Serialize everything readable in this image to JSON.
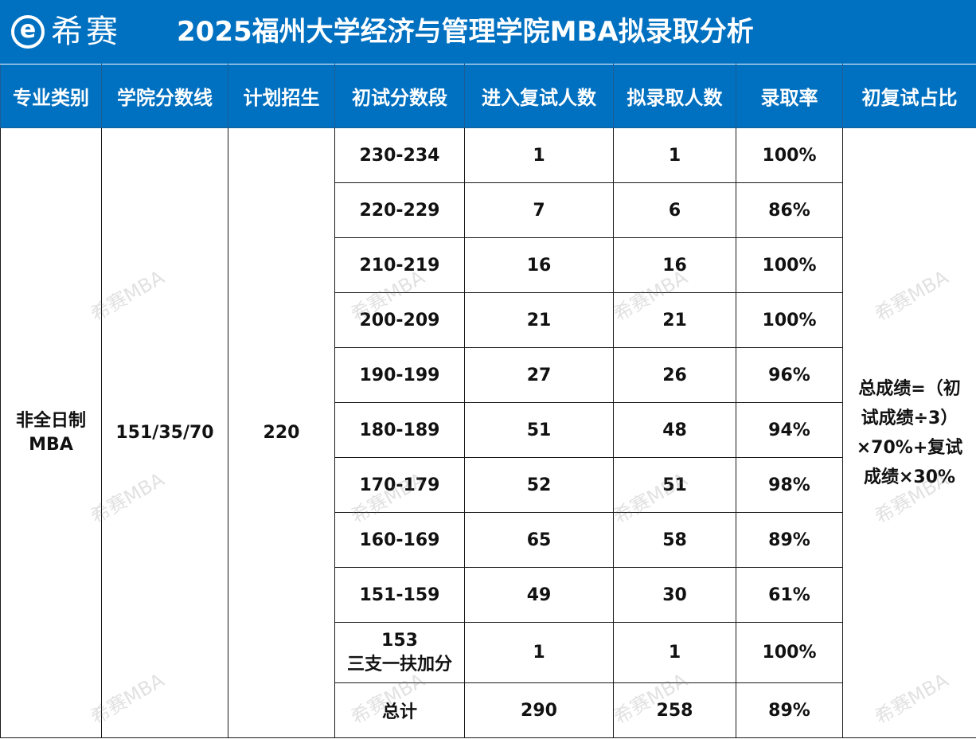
{
  "logo": {
    "icon": "e-circle-logo-icon",
    "text": "希赛"
  },
  "title": "2025福州大学经济与管理学院MBA拟录取分析",
  "columns": [
    "专业类别",
    "学院分数线",
    "计划招生",
    "初试分数段",
    "进入复试人数",
    "拟录取人数",
    "录取率",
    "初复试占比"
  ],
  "program": {
    "line1": "非全日制",
    "line2": "MBA"
  },
  "school_line": "151/35/70",
  "plan": "220",
  "ranges": [
    {
      "range": "230-234",
      "enter": "1",
      "admit": "1",
      "rate": "100%"
    },
    {
      "range": "220-229",
      "enter": "7",
      "admit": "6",
      "rate": "86%"
    },
    {
      "range": "210-219",
      "enter": "16",
      "admit": "16",
      "rate": "100%"
    },
    {
      "range": "200-209",
      "enter": "21",
      "admit": "21",
      "rate": "100%"
    },
    {
      "range": "190-199",
      "enter": "27",
      "admit": "26",
      "rate": "96%"
    },
    {
      "range": "180-189",
      "enter": "51",
      "admit": "48",
      "rate": "94%"
    },
    {
      "range": "170-179",
      "enter": "52",
      "admit": "51",
      "rate": "98%"
    },
    {
      "range": "160-169",
      "enter": "65",
      "admit": "58",
      "rate": "89%"
    },
    {
      "range": "151-159",
      "enter": "49",
      "admit": "30",
      "rate": "61%"
    }
  ],
  "special": {
    "line1": "153",
    "line2": "三支一扶加分",
    "enter": "1",
    "admit": "1",
    "rate": "100%"
  },
  "total": {
    "label": "总计",
    "enter": "290",
    "admit": "258",
    "rate": "89%"
  },
  "ratio_note": {
    "line1": "总成绩=（初",
    "line2": "试成绩÷3）",
    "line3": "×70%+复试",
    "line4": "成绩×30%"
  },
  "watermark": "希赛MBA",
  "colors": {
    "header_bg": "#0070c0",
    "total_text": "#ff0000"
  }
}
